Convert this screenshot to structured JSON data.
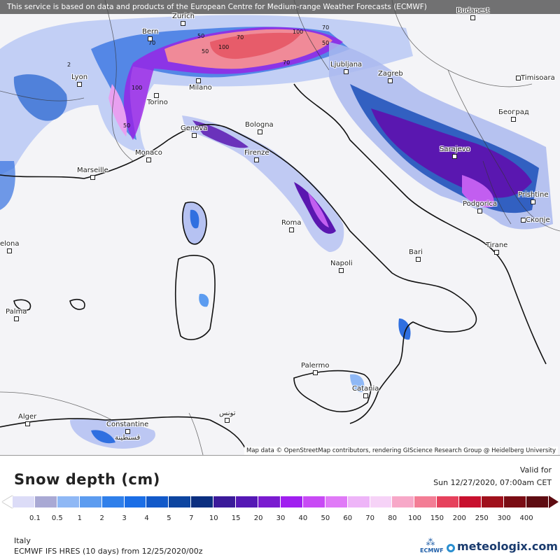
{
  "banner": "This service is based on data and products of the European Centre for Medium-range Weather Forecasts (ECMWF)",
  "attribution": "Map data © OpenStreetMap contributors, rendering GIScience Research Group @ Heidelberg University",
  "cities": {
    "budapest": "Budapest",
    "zurich": "Zurich",
    "bern": "Bern",
    "lyon": "Lyon",
    "milano": "Milano",
    "torino": "Torino",
    "ljubljana": "Ljubljana",
    "zagreb": "Zagreb",
    "timisoara": "Timisoara",
    "beograd": "Београд",
    "genova": "Genova",
    "bologna": "Bologna",
    "monaco": "Monaco",
    "marseille": "Marseille",
    "firenze": "Firenze",
    "sarajevo": "Sarajevo",
    "prishtine": "Prishtine",
    "podgorica": "Podgorica",
    "skopje": "Скопје",
    "roma": "Roma",
    "bari": "Bari",
    "tirane": "Tirane",
    "barcelona": "elona",
    "napoli": "Napoli",
    "palma": "Palma",
    "palermo": "Palermo",
    "catania": "Catania",
    "alger": "Alger",
    "tunis": "تونس",
    "constantine": "Constantine",
    "constantine_ar": "قسنطينة"
  },
  "contour_labels": [
    "70",
    "50",
    "100",
    "70",
    "100",
    "50",
    "70",
    "50",
    "70",
    "100",
    "50",
    "2"
  ],
  "legend": {
    "title": "Snow depth (cm)",
    "valid_label": "Valid for",
    "valid_date": "Sun 12/27/2020, 07:00am CET",
    "ticks": [
      "0.1",
      "0.5",
      "1",
      "2",
      "3",
      "4",
      "5",
      "7",
      "10",
      "15",
      "20",
      "30",
      "40",
      "50",
      "60",
      "70",
      "80",
      "100",
      "150",
      "200",
      "250",
      "300",
      "400"
    ],
    "colors": [
      "#dcdcf7",
      "#a9a9d4",
      "#8fb8f5",
      "#5c9cf0",
      "#2f7fea",
      "#1b6ee6",
      "#1259c9",
      "#0d45a0",
      "#0b2f80",
      "#3b1a9a",
      "#5518b5",
      "#7a1bd0",
      "#a01ff0",
      "#c84af5",
      "#e07af7",
      "#eeb5f8",
      "#f6d3f7",
      "#f7a8c8",
      "#f37d95",
      "#e6415c",
      "#c8102e",
      "#a0101c",
      "#7a0c14",
      "#5e0c12"
    ],
    "arrow_right_color": "#5e0c12"
  },
  "footer": {
    "region": "Italy",
    "model": "ECMWF IFS HRES (10 days) from 12/25/2020/00z",
    "ecmwf_label": "ECMWF",
    "brand": "meteologix.com"
  }
}
